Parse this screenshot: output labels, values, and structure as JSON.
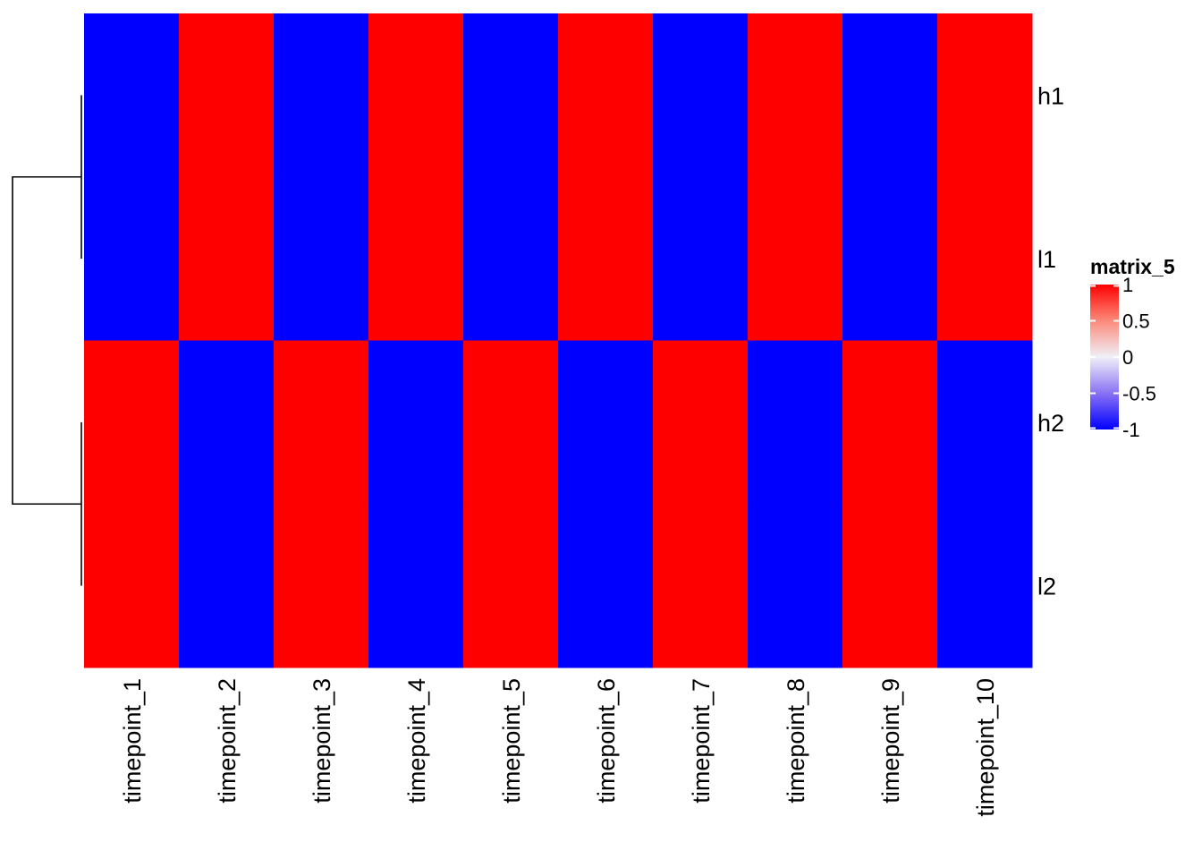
{
  "chart_data": {
    "type": "heatmap",
    "rows": [
      "h1",
      "l1",
      "h2",
      "l2"
    ],
    "columns": [
      "timepoint_1",
      "timepoint_2",
      "timepoint_3",
      "timepoint_4",
      "timepoint_5",
      "timepoint_6",
      "timepoint_7",
      "timepoint_8",
      "timepoint_9",
      "timepoint_10"
    ],
    "values": [
      [
        -1,
        1,
        -1,
        1,
        -1,
        1,
        -1,
        1,
        -1,
        1
      ],
      [
        -1,
        1,
        -1,
        1,
        -1,
        1,
        -1,
        1,
        -1,
        1
      ],
      [
        1,
        -1,
        1,
        -1,
        1,
        -1,
        1,
        -1,
        1,
        -1
      ],
      [
        1,
        -1,
        1,
        -1,
        1,
        -1,
        1,
        -1,
        1,
        -1
      ]
    ],
    "color_scale": {
      "low": "#0000ff",
      "mid": "#ffffff",
      "high": "#ff0000",
      "range": [
        -1,
        1
      ]
    },
    "legend": {
      "title": "matrix_5",
      "ticks": [
        1,
        0.5,
        0,
        -0.5,
        -1
      ],
      "tick_labels": [
        "1",
        "0.5",
        "0",
        "-0.5",
        "-1"
      ],
      "placement": "right"
    },
    "row_dendrogram": {
      "side": "left",
      "merges": [
        [
          "h1",
          "l1"
        ],
        [
          "h2",
          "l2"
        ],
        [
          [
            "h1",
            "l1"
          ],
          [
            "h2",
            "l2"
          ]
        ]
      ]
    }
  }
}
